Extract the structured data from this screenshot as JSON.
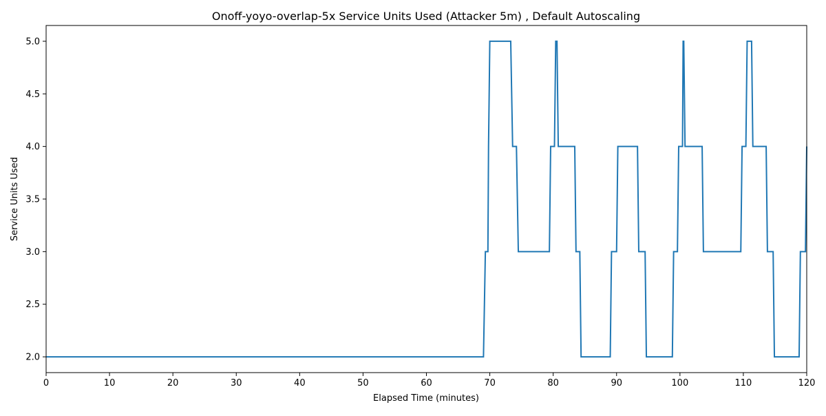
{
  "chart_data": {
    "type": "line",
    "title": "Onoff-yoyo-overlap-5x Service Units Used (Attacker 5m) , Default Autoscaling",
    "xlabel": "Elapsed Time (minutes)",
    "ylabel": "Service Units Used",
    "xlim": [
      0,
      120
    ],
    "ylim": [
      1.85,
      5.15
    ],
    "xticks": [
      0,
      10,
      20,
      30,
      40,
      50,
      60,
      70,
      80,
      90,
      100,
      110,
      120
    ],
    "yticks": [
      "2.0",
      "2.5",
      "3.0",
      "3.5",
      "4.0",
      "4.5",
      "5.0"
    ],
    "grid": false,
    "legend": "none",
    "line_color": "#1f77b4",
    "series": [
      {
        "x": [
          0,
          69.0,
          69.3,
          69.7,
          69.8,
          70.0,
          73.3,
          73.6,
          74.2,
          74.5,
          79.4,
          79.6,
          80.2,
          80.4,
          80.6,
          80.8,
          83.4,
          83.6,
          84.2,
          84.4,
          89.0,
          89.2,
          90.0,
          90.2,
          93.3,
          93.5,
          94.5,
          94.7,
          98.8,
          99.0,
          99.6,
          99.8,
          100.4,
          100.5,
          100.6,
          100.8,
          103.5,
          103.7,
          109.6,
          109.8,
          110.4,
          110.6,
          111.3,
          111.5,
          113.6,
          113.8,
          114.7,
          114.9,
          118.8,
          119.0,
          119.8,
          120.0
        ],
        "y": [
          2,
          2,
          3,
          3,
          4,
          5,
          5,
          4,
          4,
          3,
          3,
          4,
          4,
          5,
          5,
          4,
          4,
          3,
          3,
          2,
          2,
          3,
          3,
          4,
          4,
          3,
          3,
          2,
          2,
          3,
          3,
          4,
          4,
          5,
          5,
          4,
          4,
          3,
          3,
          4,
          4,
          5,
          5,
          4,
          4,
          3,
          3,
          2,
          2,
          3,
          3,
          4
        ]
      }
    ]
  }
}
